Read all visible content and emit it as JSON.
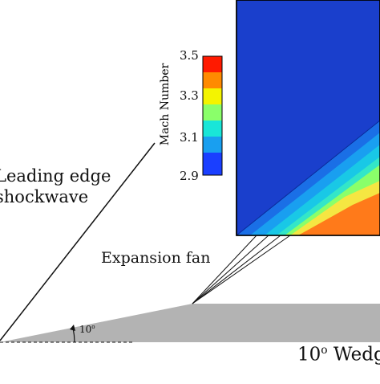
{
  "labels": {
    "leading_edge_line1": "Leading edge",
    "leading_edge_line2": "shockwave",
    "expansion_fan": "Expansion fan",
    "wedge_prefix": "10",
    "wedge_sup": "o",
    "wedge_suffix": " Wedge",
    "angle_prefix": "10",
    "angle_sup": "o"
  },
  "colorbar": {
    "title": "Mach Number",
    "ticks": [
      "3.5",
      "3.3",
      "3.1",
      "2.9"
    ],
    "colors": [
      "#ff1a00",
      "#ff8a00",
      "#f4f400",
      "#8aff6a",
      "#19e6d8",
      "#199ff0",
      "#1a3fff"
    ]
  },
  "contour_colors": {
    "background": "#1a3fcc",
    "band1": "#1a6fe6",
    "band2": "#19b4e6",
    "band3": "#33e6c8",
    "band4": "#a8f07a",
    "band5": "#f5e642",
    "band6": "#ff7a1a"
  },
  "wedge_color": "#b3b3b3"
}
